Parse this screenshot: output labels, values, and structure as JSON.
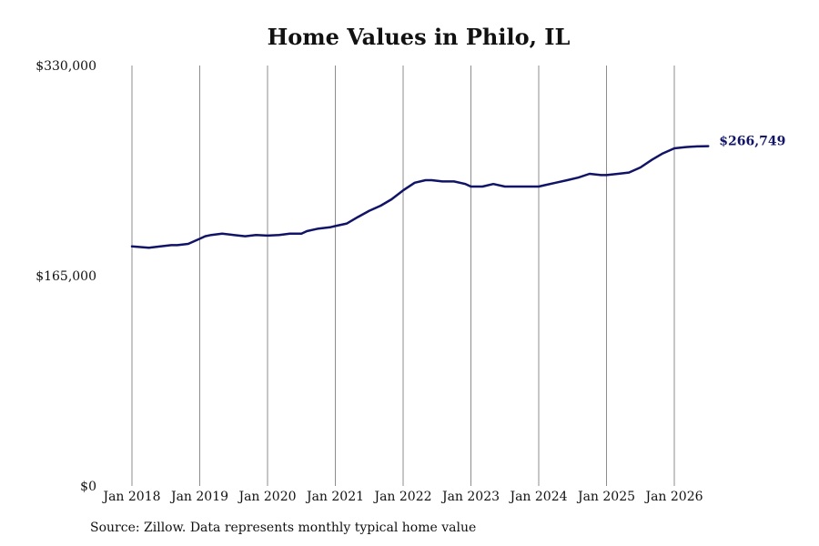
{
  "chart_data": {
    "type": "line",
    "title": "Home Values in Philo, IL",
    "xlabel": "",
    "ylabel": "",
    "ylim": [
      0,
      330000
    ],
    "y_ticks": [
      {
        "value": 0,
        "label": "$0"
      },
      {
        "value": 165000,
        "label": "$165,000"
      },
      {
        "value": 330000,
        "label": "$330,000"
      }
    ],
    "x_ticks": [
      {
        "value": 2018,
        "label": "Jan 2018"
      },
      {
        "value": 2019,
        "label": "Jan 2019"
      },
      {
        "value": 2020,
        "label": "Jan 2020"
      },
      {
        "value": 2021,
        "label": "Jan 2021"
      },
      {
        "value": 2022,
        "label": "Jan 2022"
      },
      {
        "value": 2023,
        "label": "Jan 2023"
      },
      {
        "value": 2024,
        "label": "Jan 2024"
      },
      {
        "value": 2025,
        "label": "Jan 2025"
      },
      {
        "value": 2026,
        "label": "Jan 2026"
      }
    ],
    "xlim": [
      2018,
      2026.5
    ],
    "grid": "vertical",
    "line_color": "#111466",
    "series": [
      {
        "x": [
          2018.0,
          2018.25,
          2018.42,
          2018.58,
          2018.67,
          2018.83,
          2019.0,
          2019.08,
          2019.17,
          2019.33,
          2019.5,
          2019.67,
          2019.83,
          2020.0,
          2020.17,
          2020.33,
          2020.5,
          2020.58,
          2020.75,
          2020.92,
          2021.0,
          2021.17,
          2021.33,
          2021.5,
          2021.67,
          2021.83,
          2022.0,
          2022.17,
          2022.33,
          2022.42,
          2022.58,
          2022.75,
          2022.92,
          2023.0,
          2023.17,
          2023.33,
          2023.5,
          2023.67,
          2023.83,
          2024.0,
          2024.08,
          2024.25,
          2024.42,
          2024.58,
          2024.75,
          2024.92,
          2025.0,
          2025.17,
          2025.33,
          2025.5,
          2025.67,
          2025.83,
          2026.0,
          2026.17,
          2026.33,
          2026.5
        ],
        "y": [
          188000,
          187000,
          188000,
          189000,
          189000,
          190000,
          194000,
          196000,
          197000,
          198000,
          197000,
          196000,
          197000,
          196500,
          197000,
          198000,
          198000,
          200000,
          202000,
          203000,
          204000,
          206000,
          211000,
          216000,
          220000,
          225000,
          232000,
          238000,
          240000,
          240000,
          239000,
          239000,
          237000,
          235000,
          235000,
          237000,
          235000,
          235000,
          235000,
          235000,
          236000,
          238000,
          240000,
          242000,
          245000,
          244000,
          244000,
          245000,
          246000,
          250000,
          256000,
          261000,
          265000,
          266000,
          266500,
          266749
        ]
      }
    ],
    "end_label": "$266,749"
  },
  "source": "Source: Zillow. Data represents monthly typical home value"
}
